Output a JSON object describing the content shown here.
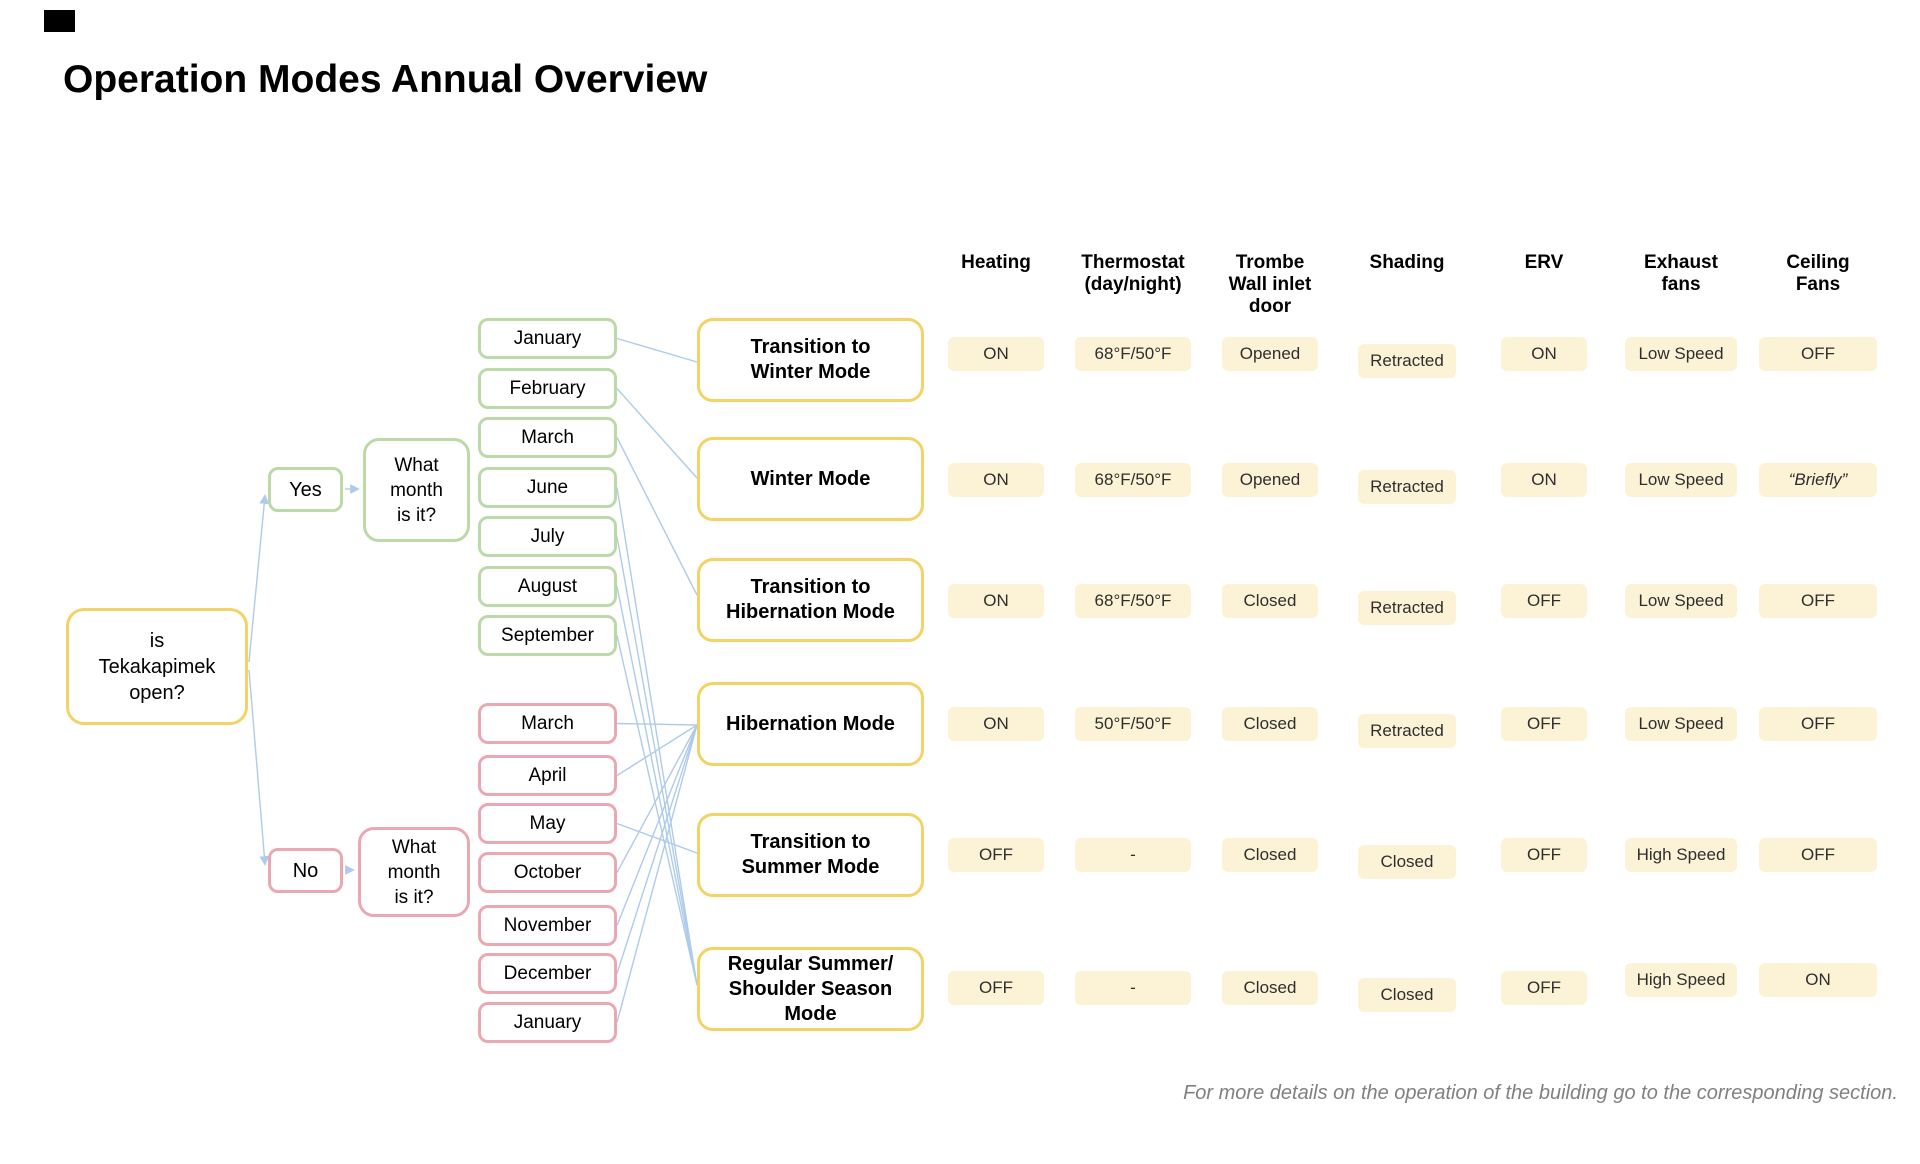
{
  "page": {
    "title": "Operation Modes Annual Overview",
    "footer": "For more details on the operation of the building go to the corresponding section."
  },
  "colors": {
    "mode_border": "#F3D266",
    "open_border": "#BCD9A8",
    "closed_border": "#E9A8B2",
    "cell_background": "#FCF3D6",
    "connector_blue": "#AECBEA"
  },
  "tree": {
    "root_question": "is\nTekakapimek\nopen?",
    "yes_label": "Yes",
    "no_label": "No",
    "month_question": "What\nmonth\nis it?",
    "open_months": [
      "January",
      "February",
      "March",
      "June",
      "July",
      "August",
      "September"
    ],
    "closed_months": [
      "March",
      "April",
      "May",
      "October",
      "November",
      "December",
      "January"
    ],
    "connections": {
      "open": [
        [
          0,
          0
        ],
        [
          1,
          1
        ],
        [
          2,
          2
        ],
        [
          3,
          5
        ],
        [
          4,
          5
        ],
        [
          5,
          5
        ],
        [
          6,
          5
        ]
      ],
      "closed": [
        [
          0,
          3
        ],
        [
          1,
          3
        ],
        [
          2,
          4
        ],
        [
          3,
          3
        ],
        [
          4,
          3
        ],
        [
          5,
          3
        ],
        [
          6,
          3
        ]
      ]
    }
  },
  "modes": [
    "Transition to\nWinter Mode",
    "Winter Mode",
    "Transition to\nHibernation Mode",
    "Hibernation Mode",
    "Transition to\nSummer Mode",
    "Regular Summer/\nShoulder Season\nMode"
  ],
  "table": {
    "columns": [
      "Heating",
      "Thermostat (day/night)",
      "Trombe Wall inlet door",
      "Shading",
      "ERV",
      "Exhaust fans",
      "Ceiling Fans"
    ],
    "rows": [
      {
        "mode": "Transition to Winter Mode",
        "values": [
          "ON",
          "68°F/50°F",
          "Opened",
          "Retracted",
          "ON",
          "Low Speed",
          "OFF"
        ]
      },
      {
        "mode": "Winter Mode",
        "values": [
          "ON",
          "68°F/50°F",
          "Opened",
          "Retracted",
          "ON",
          "Low Speed",
          "“Briefly”"
        ]
      },
      {
        "mode": "Transition to Hibernation Mode",
        "values": [
          "ON",
          "68°F/50°F",
          "Closed",
          "Retracted",
          "OFF",
          "Low Speed",
          "OFF"
        ]
      },
      {
        "mode": "Hibernation Mode",
        "values": [
          "ON",
          "50°F/50°F",
          "Closed",
          "Retracted",
          "OFF",
          "Low Speed",
          "OFF"
        ]
      },
      {
        "mode": "Transition to Summer Mode",
        "values": [
          "OFF",
          "-",
          "Closed",
          "Closed",
          "OFF",
          "High Speed",
          "OFF"
        ]
      },
      {
        "mode": "Regular Summer/Shoulder Season Mode",
        "values": [
          "OFF",
          "-",
          "Closed",
          "Closed",
          "OFF",
          "High Speed",
          "ON"
        ]
      }
    ]
  }
}
